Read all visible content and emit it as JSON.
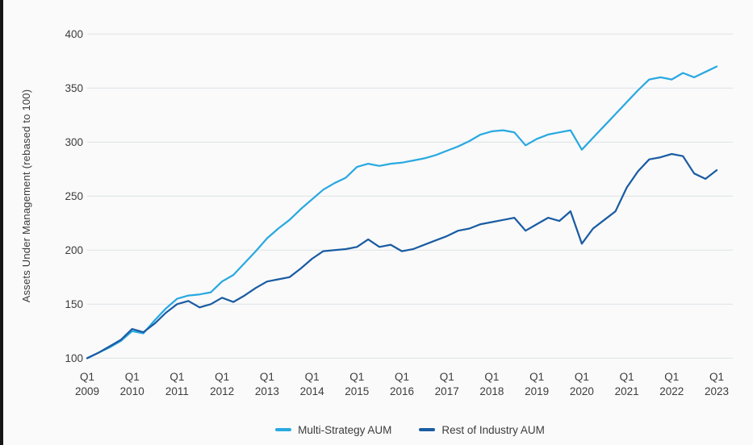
{
  "colors": {
    "background": "#fafafa",
    "accent_bar": "#161616",
    "gridline": "#dde1e4",
    "tick_text": "#3c3c3c",
    "multi_strategy_blue": "#29a9e1",
    "rest_of_industry_blue": "#1a5ca3"
  },
  "chart_data": {
    "type": "line",
    "title": "",
    "xlabel": "",
    "ylabel": "Assets Under Management (rebased to 100)",
    "ylim": [
      100,
      400
    ],
    "yticks": [
      100,
      150,
      200,
      250,
      300,
      350,
      400
    ],
    "grid": "horizontal",
    "legend_position": "bottom-center",
    "x_unit": "quarterly",
    "x_tick_prefix": "Q1",
    "x_tick_years": [
      "2009",
      "2010",
      "2011",
      "2012",
      "2013",
      "2014",
      "2015",
      "2016",
      "2017",
      "2018",
      "2019",
      "2020",
      "2021",
      "2022",
      "2023"
    ],
    "x_range_note": "quarterly points from Q1 2009 to Q1 2023",
    "series": [
      {
        "name": "Multi-Strategy AUM",
        "color": "#29a9e1",
        "values": [
          100,
          105,
          110,
          116,
          125,
          123,
          135,
          146,
          155,
          158,
          159,
          161,
          171,
          177,
          188,
          199,
          211,
          220,
          228,
          238,
          247,
          256,
          262,
          267,
          277,
          280,
          278,
          280,
          281,
          283,
          285,
          288,
          292,
          296,
          301,
          307,
          310,
          311,
          309,
          297,
          303,
          307,
          309,
          311,
          293,
          304,
          315,
          326,
          337,
          348,
          358,
          360,
          358,
          364,
          360,
          365,
          370
        ]
      },
      {
        "name": "Rest of Industry AUM",
        "color": "#1a5ca3",
        "values": [
          100,
          105,
          111,
          117,
          127,
          124,
          132,
          142,
          150,
          153,
          147,
          150,
          156,
          152,
          158,
          165,
          171,
          173,
          175,
          183,
          192,
          199,
          200,
          201,
          203,
          210,
          203,
          205,
          199,
          201,
          205,
          209,
          213,
          218,
          220,
          224,
          226,
          228,
          230,
          218,
          224,
          230,
          227,
          236,
          206,
          220,
          228,
          236,
          258,
          273,
          284,
          286,
          289,
          287,
          271,
          266,
          274
        ]
      }
    ]
  },
  "legend": {
    "items": [
      {
        "label": "Multi-Strategy AUM"
      },
      {
        "label": "Rest of Industry AUM"
      }
    ]
  }
}
